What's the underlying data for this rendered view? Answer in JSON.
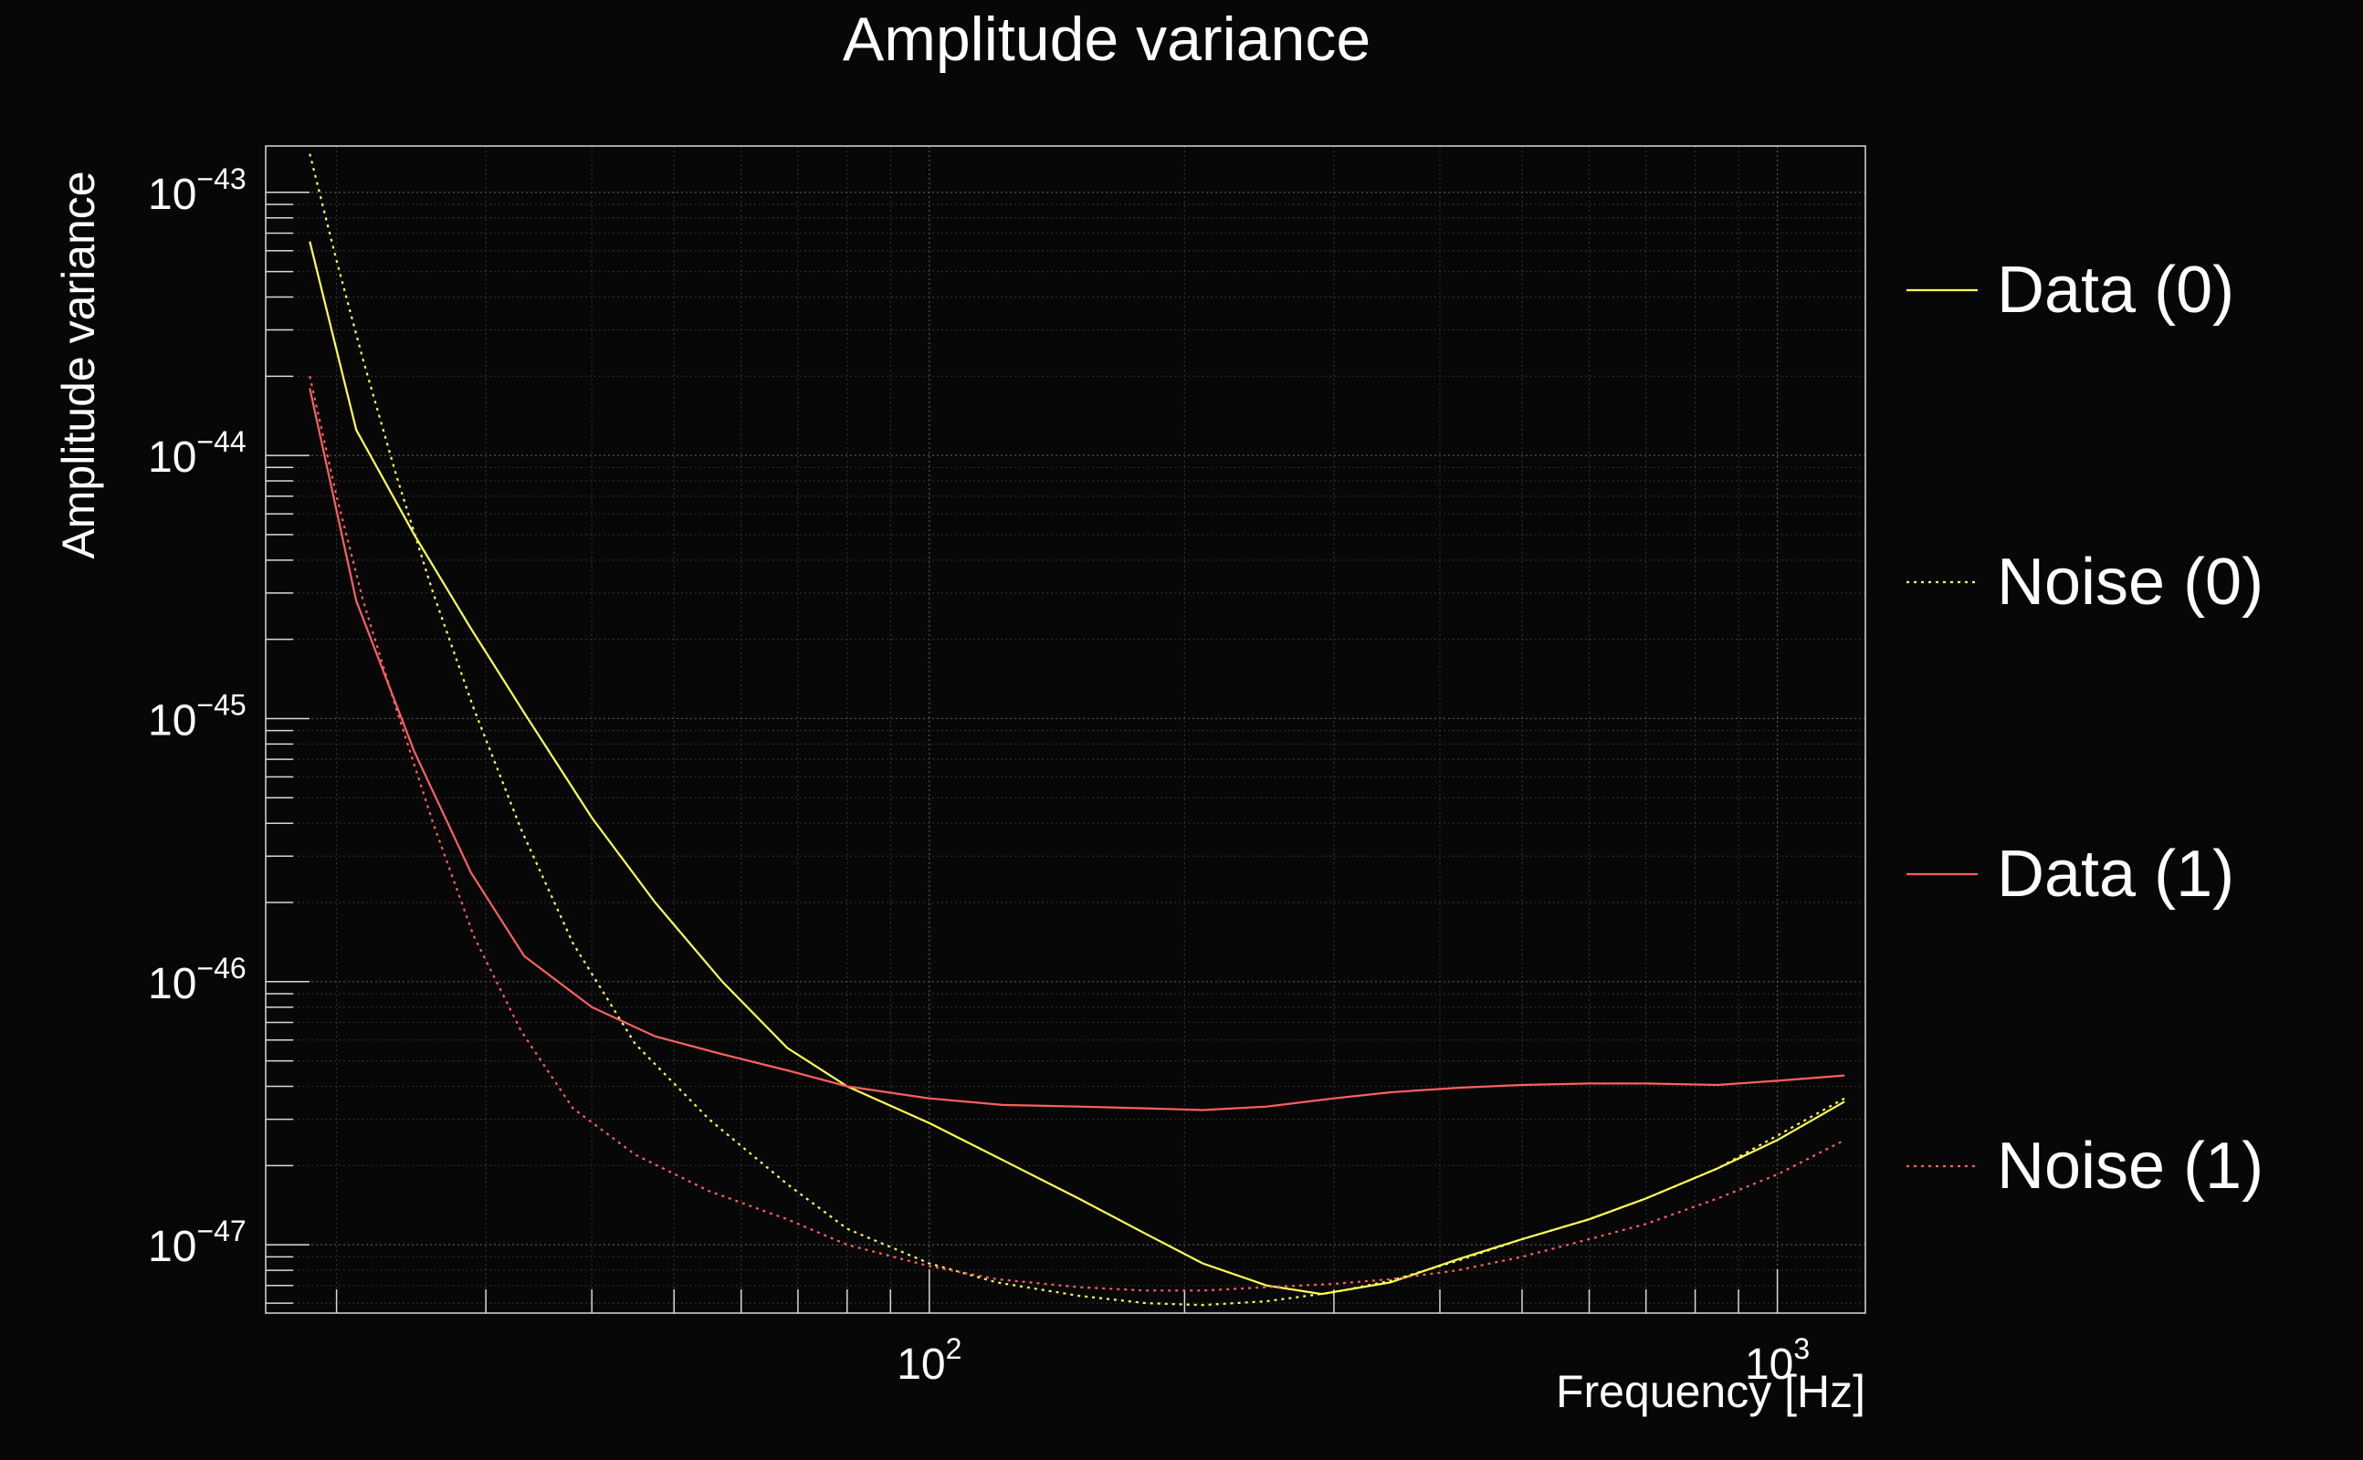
{
  "chart_data": {
    "type": "line",
    "title": "Amplitude variance",
    "xlabel": "Frequency [Hz]",
    "ylabel": "Amplitude variance",
    "x_scale": "log",
    "y_scale": "log",
    "xlim": [
      16.5,
      1270
    ],
    "ylim": [
      5.5e-48,
      1.5e-43
    ],
    "grid": true,
    "legend_position": "right",
    "x_ticks": [
      {
        "value": 100,
        "base": "10",
        "exp": "2"
      },
      {
        "value": 1000,
        "base": "10",
        "exp": "3"
      }
    ],
    "y_ticks": [
      {
        "value": 1e-47,
        "base": "10",
        "exp": "−47"
      },
      {
        "value": 1e-46,
        "base": "10",
        "exp": "−46"
      },
      {
        "value": 1e-45,
        "base": "10",
        "exp": "−45"
      },
      {
        "value": 1e-44,
        "base": "10",
        "exp": "−44"
      },
      {
        "value": 1e-43,
        "base": "10",
        "exp": "−43"
      }
    ],
    "series": [
      {
        "name": "Data (0)",
        "color": "#ffff55",
        "style": "solid",
        "x": [
          18.6,
          21.1,
          24.7,
          28.8,
          33.3,
          40.0,
          47.5,
          57.0,
          68.0,
          80.0,
          100.0,
          122.0,
          150.0,
          180.0,
          210.0,
          250.0,
          290.0,
          350.0,
          420.0,
          500.0,
          600.0,
          700.0,
          850.0,
          1000.0,
          1200.0
        ],
        "y": [
          6.5e-44,
          1.25e-44,
          5e-45,
          2.2e-45,
          1.05e-45,
          4.2e-46,
          2e-46,
          1e-46,
          5.6e-47,
          4e-47,
          2.9e-47,
          2.1e-47,
          1.5e-47,
          1.1e-47,
          8.5e-48,
          7e-48,
          6.5e-48,
          7.2e-48,
          8.8e-48,
          1.05e-47,
          1.25e-47,
          1.5e-47,
          1.95e-47,
          2.5e-47,
          3.5e-47
        ]
      },
      {
        "name": "Noise (0)",
        "color": "#ffff55",
        "style": "dotted",
        "x": [
          18.6,
          20.0,
          21.5,
          23.5,
          26.0,
          29.0,
          33.0,
          38.0,
          45.0,
          55.0,
          68.0,
          80.0,
          100.0,
          120.0,
          150.0,
          180.0,
          210.0,
          250.0,
          300.0,
          350.0,
          420.0,
          500.0,
          600.0,
          700.0,
          850.0,
          1000.0,
          1200.0
        ],
        "y": [
          1.4e-43,
          5.5e-44,
          2.3e-44,
          8.5e-45,
          3e-45,
          1.1e-45,
          3.8e-46,
          1.4e-46,
          5.8e-47,
          3e-47,
          1.7e-47,
          1.15e-47,
          8.5e-48,
          7.2e-48,
          6.4e-48,
          6e-48,
          5.9e-48,
          6.1e-48,
          6.6e-48,
          7.3e-48,
          8.7e-48,
          1.05e-47,
          1.25e-47,
          1.5e-47,
          1.95e-47,
          2.6e-47,
          3.6e-47
        ]
      },
      {
        "name": "Data (1)",
        "color": "#ff6060",
        "style": "solid",
        "x": [
          18.6,
          21.1,
          24.7,
          28.8,
          33.3,
          40.0,
          47.5,
          57.0,
          68.0,
          80.0,
          100.0,
          122.0,
          150.0,
          180.0,
          210.0,
          250.0,
          300.0,
          350.0,
          420.0,
          500.0,
          600.0,
          700.0,
          850.0,
          1000.0,
          1200.0
        ],
        "y": [
          1.8e-44,
          2.8e-45,
          7.5e-46,
          2.6e-46,
          1.25e-46,
          8e-47,
          6.2e-47,
          5.3e-47,
          4.6e-47,
          4e-47,
          3.6e-47,
          3.4e-47,
          3.35e-47,
          3.3e-47,
          3.25e-47,
          3.35e-47,
          3.6e-47,
          3.8e-47,
          3.95e-47,
          4.05e-47,
          4.1e-47,
          4.1e-47,
          4.05e-47,
          4.2e-47,
          4.4e-47
        ]
      },
      {
        "name": "Noise (1)",
        "color": "#ff6060",
        "style": "dotted",
        "x": [
          18.6,
          20.0,
          21.5,
          23.5,
          26.0,
          29.0,
          33.0,
          38.0,
          45.0,
          55.0,
          68.0,
          80.0,
          100.0,
          120.0,
          150.0,
          180.0,
          210.0,
          250.0,
          300.0,
          350.0,
          420.0,
          500.0,
          600.0,
          700.0,
          850.0,
          1000.0,
          1200.0
        ],
        "y": [
          2e-44,
          7e-45,
          2.8e-45,
          1.1e-45,
          4e-46,
          1.5e-46,
          6.5e-47,
          3.3e-47,
          2.2e-47,
          1.6e-47,
          1.25e-47,
          1e-47,
          8.3e-48,
          7.4e-48,
          6.9e-48,
          6.7e-48,
          6.7e-48,
          6.9e-48,
          7.1e-48,
          7.4e-48,
          8e-48,
          9e-48,
          1.05e-47,
          1.2e-47,
          1.5e-47,
          1.85e-47,
          2.5e-47
        ]
      }
    ]
  }
}
